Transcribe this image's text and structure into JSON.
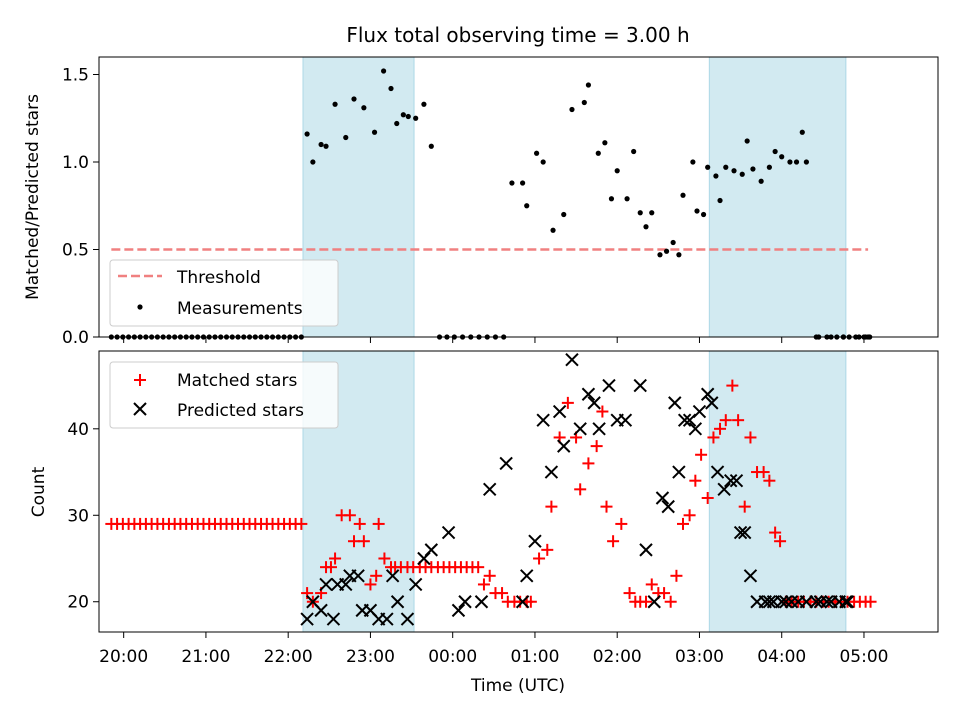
{
  "figure": {
    "title": "Flux total observing time = 3.00 h"
  },
  "colors": {
    "band": "#add8e6",
    "threshold": "#f08080",
    "measurement": "#000000",
    "matched": "#ff0000",
    "predicted": "#000000"
  },
  "chart_data": [
    {
      "type": "scatter",
      "ylabel": "Matched/Predicted stars",
      "ylim": [
        0,
        1.6
      ],
      "yticks": [
        0.0,
        0.5,
        1.0,
        1.5
      ],
      "ytick_labels": [
        "0.0",
        "0.5",
        "1.0",
        "1.5"
      ],
      "xlim": [
        -0.3,
        9.9
      ],
      "legend": {
        "placement": "lower-left",
        "entries": [
          "Threshold",
          "Measurements"
        ]
      },
      "shaded_spans": [
        [
          2.18,
          3.53
        ],
        [
          7.12,
          8.78
        ]
      ],
      "threshold": {
        "name": "Threshold",
        "x": [
          -0.15,
          9.05
        ],
        "y": 0.5
      },
      "series": [
        {
          "name": "Measurements",
          "x": [
            -0.15,
            -0.08,
            -0.01,
            0.06,
            0.13,
            0.2,
            0.27,
            0.34,
            0.41,
            0.48,
            0.55,
            0.62,
            0.69,
            0.76,
            0.83,
            0.9,
            0.97,
            1.04,
            1.11,
            1.18,
            1.25,
            1.32,
            1.39,
            1.46,
            1.53,
            1.6,
            1.67,
            1.74,
            1.81,
            1.88,
            1.95,
            2.02,
            2.09,
            2.16,
            2.23,
            2.3,
            2.4,
            2.46,
            2.57,
            2.7,
            2.8,
            2.92,
            3.05,
            3.16,
            3.25,
            3.32,
            3.4,
            3.46,
            3.55,
            3.65,
            3.74,
            3.84,
            3.93,
            4.02,
            4.12,
            4.22,
            4.32,
            4.42,
            4.52,
            4.62,
            4.72,
            4.85,
            4.9,
            5.02,
            5.22,
            5.1,
            5.35,
            5.45,
            5.6,
            5.65,
            5.77,
            5.85,
            5.93,
            6.0,
            6.12,
            6.2,
            6.28,
            6.35,
            6.42,
            6.52,
            6.6,
            6.68,
            6.75,
            6.8,
            6.92,
            6.97,
            7.05,
            7.1,
            7.2,
            7.25,
            7.32,
            7.42,
            7.52,
            7.58,
            7.65,
            7.75,
            7.85,
            7.92,
            8.0,
            8.1,
            8.18,
            8.25,
            8.3,
            8.42,
            8.45,
            8.55,
            8.6,
            8.67,
            8.75,
            8.82,
            8.9,
            9.0,
            9.07,
            8.75,
            8.94,
            9.02,
            9.05
          ],
          "y": [
            0,
            0,
            0,
            0,
            0,
            0,
            0,
            0,
            0,
            0,
            0,
            0,
            0,
            0,
            0,
            0,
            0,
            0,
            0,
            0,
            0,
            0,
            0,
            0,
            0,
            0,
            0,
            0,
            0,
            0,
            0,
            0,
            0,
            0,
            1.16,
            1.0,
            1.1,
            1.09,
            1.33,
            1.14,
            1.36,
            1.31,
            1.17,
            1.52,
            1.42,
            1.22,
            1.27,
            1.26,
            1.25,
            1.33,
            1.09,
            0,
            0,
            0,
            0,
            0,
            0,
            0,
            0,
            0,
            0.88,
            0.88,
            0.75,
            1.05,
            0.61,
            1.0,
            0.7,
            1.3,
            1.34,
            1.44,
            1.05,
            1.11,
            0.79,
            0.95,
            0.79,
            1.06,
            0.71,
            0.63,
            0.71,
            0.47,
            0.49,
            0.54,
            0.47,
            0.81,
            1.0,
            0.72,
            0.7,
            0.97,
            0.92,
            0.78,
            0.97,
            0.95,
            0.93,
            1.12,
            0.96,
            0.89,
            0.97,
            1.06,
            1.03,
            1.0,
            1.0,
            1.17,
            1.0,
            0.0,
            0.0,
            0.0,
            0.0,
            0.0,
            0.0,
            0.0,
            0.0,
            0.0,
            0.0,
            0.0,
            0.0,
            0.0,
            0.0
          ]
        }
      ]
    },
    {
      "type": "scatter",
      "ylabel": "Count",
      "xlabel": "Time (UTC)",
      "ylim": [
        16.5,
        49
      ],
      "yticks": [
        20,
        30,
        40
      ],
      "ytick_labels": [
        "20",
        "30",
        "40"
      ],
      "xlim": [
        -0.3,
        9.9
      ],
      "xticks": [
        0,
        1,
        2,
        3,
        4,
        5,
        6,
        7,
        8,
        9
      ],
      "xtick_labels": [
        "20:00",
        "21:00",
        "22:00",
        "23:00",
        "00:00",
        "01:00",
        "02:00",
        "03:00",
        "04:00",
        "05:00"
      ],
      "legend": {
        "placement": "upper-left",
        "entries": [
          "Matched stars",
          "Predicted stars"
        ]
      },
      "shaded_spans": [
        [
          2.18,
          3.53
        ],
        [
          7.12,
          8.78
        ]
      ],
      "series": [
        {
          "name": "Matched stars",
          "x": [
            -0.15,
            -0.08,
            -0.01,
            0.06,
            0.13,
            0.2,
            0.27,
            0.34,
            0.41,
            0.48,
            0.55,
            0.62,
            0.69,
            0.76,
            0.83,
            0.9,
            0.97,
            1.04,
            1.11,
            1.18,
            1.25,
            1.32,
            1.39,
            1.46,
            1.53,
            1.6,
            1.67,
            1.74,
            1.81,
            1.88,
            1.95,
            2.02,
            2.09,
            2.16,
            2.23,
            2.3,
            2.4,
            2.46,
            2.52,
            2.57,
            2.65,
            2.75,
            2.8,
            2.87,
            2.92,
            3.0,
            3.07,
            3.1,
            3.17,
            3.25,
            3.3,
            3.37,
            3.45,
            3.52,
            3.6,
            3.67,
            3.74,
            3.82,
            3.89,
            3.96,
            4.03,
            4.1,
            4.17,
            4.24,
            4.31,
            4.38,
            4.45,
            4.52,
            4.6,
            4.67,
            4.75,
            4.82,
            4.9,
            4.95,
            5.05,
            5.15,
            5.2,
            5.3,
            5.4,
            5.5,
            5.55,
            5.65,
            5.75,
            5.82,
            5.87,
            5.95,
            6.05,
            6.15,
            6.22,
            6.28,
            6.35,
            6.42,
            6.5,
            6.57,
            6.65,
            6.72,
            6.8,
            6.88,
            6.95,
            7.02,
            7.1,
            7.17,
            7.25,
            7.32,
            7.4,
            7.47,
            7.55,
            7.62,
            7.7,
            7.78,
            7.85,
            7.92,
            7.98,
            8.05,
            8.12,
            8.2,
            8.27,
            8.35,
            8.42,
            8.5,
            8.57,
            8.65,
            8.72,
            8.8,
            8.88,
            8.95,
            9.02,
            9.08
          ],
          "y": [
            29,
            29,
            29,
            29,
            29,
            29,
            29,
            29,
            29,
            29,
            29,
            29,
            29,
            29,
            29,
            29,
            29,
            29,
            29,
            29,
            29,
            29,
            29,
            29,
            29,
            29,
            29,
            29,
            29,
            29,
            29,
            29,
            29,
            29,
            21,
            20,
            21,
            24,
            24,
            25,
            30,
            30,
            27,
            29,
            27,
            22,
            23,
            29,
            25,
            24,
            24,
            24,
            24,
            24,
            24,
            24,
            24,
            24,
            24,
            24,
            24,
            24,
            24,
            24,
            24,
            22,
            23,
            21,
            21,
            20,
            20,
            20,
            20,
            20,
            25,
            26,
            31,
            39,
            43,
            39,
            33,
            36,
            38,
            42,
            31,
            27,
            29,
            21,
            20,
            20,
            20,
            22,
            21,
            21,
            20,
            23,
            29,
            30,
            34,
            37,
            32,
            39,
            40,
            41,
            45,
            41,
            31,
            39,
            35,
            35,
            34,
            28,
            27,
            20,
            20,
            20,
            20,
            20,
            20,
            20,
            20,
            20,
            20,
            20,
            20,
            20,
            20,
            20
          ],
          "note_range": "ignore"
        },
        {
          "name": "Predicted stars",
          "x": [
            2.23,
            2.3,
            2.4,
            2.46,
            2.55,
            2.6,
            2.7,
            2.75,
            2.85,
            2.9,
            3.0,
            3.1,
            3.2,
            3.27,
            3.33,
            3.45,
            3.55,
            3.65,
            3.74,
            3.95,
            4.07,
            4.15,
            4.35,
            4.45,
            4.65,
            4.85,
            4.9,
            5.0,
            5.1,
            5.2,
            5.3,
            5.35,
            5.45,
            5.55,
            5.65,
            5.72,
            5.78,
            5.9,
            6.0,
            6.1,
            6.28,
            6.35,
            6.45,
            6.55,
            6.62,
            6.7,
            6.75,
            6.82,
            6.88,
            6.95,
            7.0,
            7.1,
            7.15,
            7.22,
            7.3,
            7.38,
            7.45,
            7.5,
            7.55,
            7.62,
            7.7,
            7.8,
            7.85,
            7.9,
            8.0,
            8.05,
            8.12,
            8.2,
            8.3,
            8.42,
            8.47,
            8.55,
            8.6,
            8.7,
            8.78,
            8.8
          ],
          "y": [
            18,
            20,
            19,
            22,
            18,
            22,
            22,
            23,
            23,
            19,
            19,
            18,
            18,
            23,
            20,
            18,
            22,
            25,
            26,
            28,
            19,
            20,
            20,
            33,
            36,
            20,
            23,
            27,
            41,
            35,
            42,
            38,
            48,
            40,
            44,
            43,
            40,
            45,
            41,
            41,
            45,
            26,
            20,
            32,
            31,
            43,
            35,
            41,
            41,
            40,
            42,
            44,
            43,
            35,
            33,
            34,
            34,
            28,
            28,
            23,
            20,
            20,
            20,
            20,
            20,
            20,
            20,
            20,
            20,
            20,
            20,
            20,
            20,
            20,
            20,
            20
          ]
        }
      ]
    }
  ]
}
